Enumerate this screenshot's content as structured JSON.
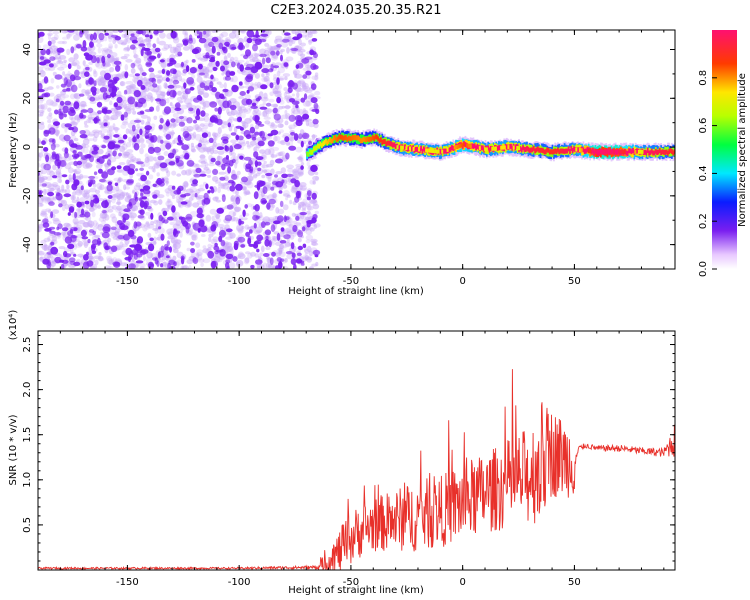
{
  "title": "C2E3.2024.035.20.35.R21",
  "colors": {
    "snr_line": "#e8302a",
    "spectrogram_noise": "#7a1ff0",
    "spectrogram_noise_light": "#c9a8f7"
  },
  "chart_data": [
    {
      "type": "heatmap",
      "title": "C2E3.2024.035.20.35.R21",
      "xlabel": "Height of straight line (km)",
      "ylabel": "Frequency (Hz)",
      "xlim": [
        -190,
        95
      ],
      "ylim": [
        -50,
        48
      ],
      "xticks": [
        -150,
        -100,
        -50,
        0,
        50
      ],
      "xtick_labels": [
        "-150",
        "-100",
        "-50",
        "0",
        "50"
      ],
      "yticks": [
        -40,
        -20,
        0,
        20,
        40
      ],
      "ytick_labels": [
        "-40",
        "-20",
        "0",
        "20",
        "40"
      ],
      "noise_region_x": [
        -190,
        -65
      ],
      "signal_trace": {
        "x": [
          -70,
          -62,
          -55,
          -45,
          -40,
          -35,
          -30,
          -20,
          -10,
          0,
          10,
          20,
          30,
          40,
          50,
          60,
          70,
          80,
          95
        ],
        "y": [
          -3,
          2,
          4,
          3,
          4,
          2,
          0,
          -1,
          -2,
          1,
          -1,
          0,
          -1,
          -2,
          -1,
          -2,
          -2,
          -2,
          -2
        ],
        "amplitude": [
          0.15,
          0.3,
          0.4,
          0.35,
          0.4,
          0.45,
          0.55,
          0.6,
          0.55,
          0.7,
          0.55,
          0.6,
          0.5,
          0.45,
          0.55,
          0.85,
          0.8,
          0.55,
          0.45
        ]
      },
      "colorbar": {
        "label": "Normalized spectral amplitude",
        "range": [
          0.0,
          1.0
        ],
        "ticks": [
          0.0,
          0.2,
          0.4,
          0.6,
          0.8
        ],
        "tick_labels": [
          "0.0",
          "0.2",
          "0.4",
          "0.6",
          "0.8"
        ]
      }
    },
    {
      "type": "line",
      "xlabel": "Height of straight line (km)",
      "ylabel": "SNR (10 * v/v)",
      "yscale_label": "(x10⁴)",
      "xlim": [
        -190,
        95
      ],
      "ylim": [
        0,
        2.65
      ],
      "xticks": [
        -150,
        -100,
        -50,
        0,
        50
      ],
      "xtick_labels": [
        "-150",
        "-100",
        "-50",
        "0",
        "50"
      ],
      "yticks": [
        0.5,
        1.0,
        1.5,
        2.0,
        2.5
      ],
      "ytick_labels": [
        "0.5",
        "1.0",
        "1.5",
        "2.0",
        "2.5"
      ],
      "series": [
        {
          "x": [
            -190,
            -150,
            -100,
            -65,
            -60,
            -55,
            -50,
            -45,
            -40,
            -30,
            -20,
            -10,
            0,
            10,
            20,
            30,
            35,
            40,
            45,
            50,
            52,
            55,
            60,
            70,
            80,
            90,
            95
          ],
          "y": [
            0.02,
            0.02,
            0.02,
            0.03,
            0.1,
            0.2,
            0.35,
            0.45,
            0.5,
            0.55,
            0.6,
            0.65,
            0.75,
            0.85,
            0.95,
            1.05,
            1.2,
            1.3,
            1.25,
            1.2,
            1.35,
            1.38,
            1.35,
            1.35,
            1.32,
            1.3,
            1.45
          ],
          "spread": [
            0.01,
            0.01,
            0.01,
            0.02,
            0.15,
            0.25,
            0.3,
            0.3,
            0.3,
            0.35,
            0.4,
            0.4,
            0.45,
            0.45,
            0.5,
            0.55,
            0.7,
            0.5,
            0.45,
            0.4,
            0.03,
            0.03,
            0.03,
            0.04,
            0.04,
            0.05,
            0.2
          ]
        }
      ]
    }
  ]
}
